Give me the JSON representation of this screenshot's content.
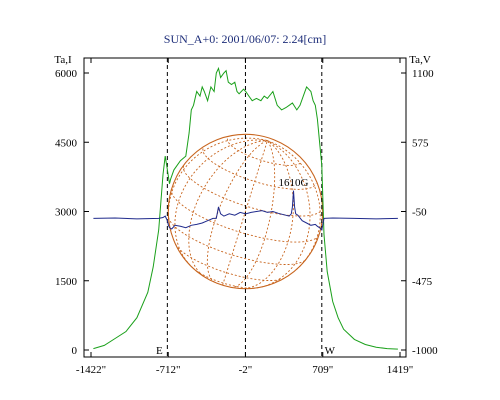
{
  "chart_data": {
    "type": "line",
    "title": "SUN_A+0: 2001/06/07: 2.24[cm]",
    "left_axis_label": "Ta,I",
    "right_axis_label": "Ta,V",
    "x_ticks": [
      "-1422\"",
      "-712\"",
      "-2\"",
      "709\"",
      "1419\""
    ],
    "x_tick_values": [
      -1422,
      -712,
      -2,
      709,
      1419
    ],
    "xlim": [
      -1422,
      1419
    ],
    "y_left_ticks": [
      "0",
      "1500",
      "3000",
      "4500",
      "6000"
    ],
    "y_left_values": [
      0,
      1500,
      3000,
      4500,
      6000
    ],
    "ylim_left": [
      0,
      6250
    ],
    "y_right_ticks": [
      "-1000",
      "-475",
      "-50",
      "575",
      "1100"
    ],
    "y_right_values": [
      -1000,
      -475,
      -50,
      575,
      1100
    ],
    "ylim_right": [
      -1000,
      1100
    ],
    "limb_markers": [
      {
        "label": "E",
        "x": -720
      },
      {
        "label": "W",
        "x": 700
      }
    ],
    "center_line_x": -2,
    "solar_disk": {
      "center_x": -2,
      "radius": 710,
      "center_left_y": 3000,
      "color": "#c8651e"
    },
    "annotations": [
      {
        "text": "1610G",
        "x": 440,
        "y_left": 3550
      }
    ],
    "series": [
      {
        "name": "",
        "axis": "left",
        "color": "#1aa01a",
        "x": [
          -1400,
          -1300,
          -1200,
          -1100,
          -1000,
          -900,
          -850,
          -800,
          -760,
          -740,
          -720,
          -700,
          -690,
          -660,
          -600,
          -550,
          -520,
          -500,
          -480,
          -450,
          -420,
          -400,
          -380,
          -350,
          -320,
          -290,
          -270,
          -250,
          -230,
          -200,
          -180,
          -160,
          -130,
          -100,
          -80,
          -60,
          -40,
          -20,
          0,
          30,
          60,
          100,
          140,
          170,
          200,
          250,
          290,
          330,
          370,
          400,
          430,
          470,
          500,
          530,
          560,
          600,
          620,
          640,
          660,
          680,
          700,
          720,
          750,
          800,
          850,
          900,
          1000,
          1100,
          1200,
          1300,
          1400
        ],
        "y": [
          30,
          100,
          250,
          400,
          700,
          1250,
          1800,
          2600,
          3800,
          4200,
          3900,
          3600,
          3700,
          3900,
          4100,
          4200,
          4700,
          5200,
          5300,
          5600,
          5500,
          5700,
          5600,
          5400,
          5700,
          5600,
          6000,
          6100,
          5900,
          6000,
          6050,
          5800,
          5750,
          5800,
          5600,
          5550,
          5600,
          5650,
          5600,
          5500,
          5400,
          5450,
          5400,
          5500,
          5450,
          5600,
          5300,
          5200,
          5250,
          5300,
          5350,
          5200,
          5300,
          5500,
          5700,
          5600,
          5400,
          5300,
          5000,
          4500,
          4000,
          2500,
          1700,
          1050,
          700,
          450,
          230,
          120,
          60,
          30,
          20
        ]
      },
      {
        "name": "",
        "axis": "left",
        "color": "#1f2a8c",
        "x": [
          -1400,
          -1200,
          -1000,
          -800,
          -760,
          -740,
          -720,
          -710,
          -700,
          -680,
          -650,
          -600,
          -550,
          -500,
          -450,
          -400,
          -350,
          -300,
          -270,
          -250,
          -230,
          -200,
          -150,
          -100,
          -50,
          0,
          50,
          100,
          150,
          200,
          250,
          300,
          350,
          400,
          420,
          430,
          440,
          450,
          460,
          480,
          520,
          560,
          600,
          640,
          660,
          680,
          700,
          720,
          800,
          1000,
          1200,
          1400
        ],
        "y": [
          2850,
          2860,
          2840,
          2850,
          2870,
          2900,
          2800,
          2700,
          2650,
          2620,
          2700,
          2680,
          2650,
          2700,
          2720,
          2750,
          2800,
          2850,
          2850,
          3100,
          2950,
          2900,
          2950,
          2920,
          2980,
          2950,
          2980,
          3000,
          3020,
          2980,
          3000,
          2960,
          2930,
          2900,
          2950,
          3100,
          3450,
          3100,
          2950,
          2920,
          2800,
          2750,
          2700,
          2720,
          2680,
          2650,
          2600,
          2850,
          2860,
          2850,
          2840,
          2850
        ]
      }
    ]
  }
}
